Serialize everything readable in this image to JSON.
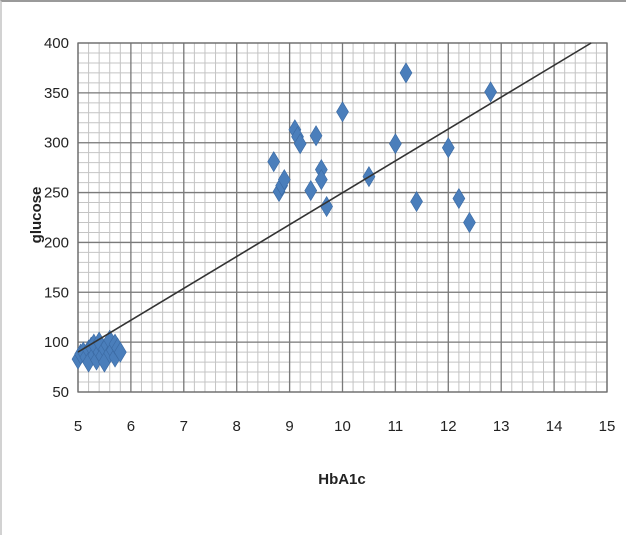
{
  "chart_data": {
    "type": "scatter",
    "title": "",
    "xlabel": "HbA1c",
    "ylabel": "glucose",
    "xlim": [
      5,
      15
    ],
    "ylim": [
      50,
      400
    ],
    "x_ticks": [
      "5",
      "6",
      "7",
      "8",
      "9",
      "10",
      "11",
      "12",
      "13",
      "14",
      "15"
    ],
    "y_ticks": [
      "50",
      "100",
      "150",
      "200",
      "250",
      "300",
      "350",
      "400"
    ],
    "grid": true,
    "legend": "none",
    "marker": "diamond",
    "marker_color": "#4a7ebb",
    "trendline_color": "#333333",
    "points": [
      [
        5.0,
        83
      ],
      [
        5.05,
        88
      ],
      [
        5.1,
        90
      ],
      [
        5.15,
        85
      ],
      [
        5.2,
        92
      ],
      [
        5.2,
        80
      ],
      [
        5.25,
        95
      ],
      [
        5.3,
        87
      ],
      [
        5.3,
        98
      ],
      [
        5.35,
        82
      ],
      [
        5.4,
        90
      ],
      [
        5.4,
        100
      ],
      [
        5.45,
        86
      ],
      [
        5.5,
        93
      ],
      [
        5.5,
        80
      ],
      [
        5.55,
        97
      ],
      [
        5.6,
        89
      ],
      [
        5.6,
        102
      ],
      [
        5.65,
        92
      ],
      [
        5.7,
        85
      ],
      [
        5.7,
        98
      ],
      [
        5.75,
        94
      ],
      [
        5.8,
        90
      ],
      [
        8.7,
        281
      ],
      [
        8.8,
        251
      ],
      [
        8.85,
        257
      ],
      [
        8.9,
        263
      ],
      [
        9.1,
        313
      ],
      [
        9.15,
        306
      ],
      [
        9.2,
        299
      ],
      [
        9.4,
        252
      ],
      [
        9.5,
        307
      ],
      [
        9.6,
        273
      ],
      [
        9.6,
        263
      ],
      [
        9.7,
        236
      ],
      [
        10.0,
        331
      ],
      [
        10.5,
        266
      ],
      [
        11.0,
        299
      ],
      [
        11.2,
        370
      ],
      [
        11.4,
        241
      ],
      [
        12.0,
        295
      ],
      [
        12.2,
        244
      ],
      [
        12.4,
        220
      ],
      [
        12.8,
        351
      ]
    ],
    "trendline": [
      [
        5,
        90
      ],
      [
        14.7,
        400
      ]
    ]
  }
}
